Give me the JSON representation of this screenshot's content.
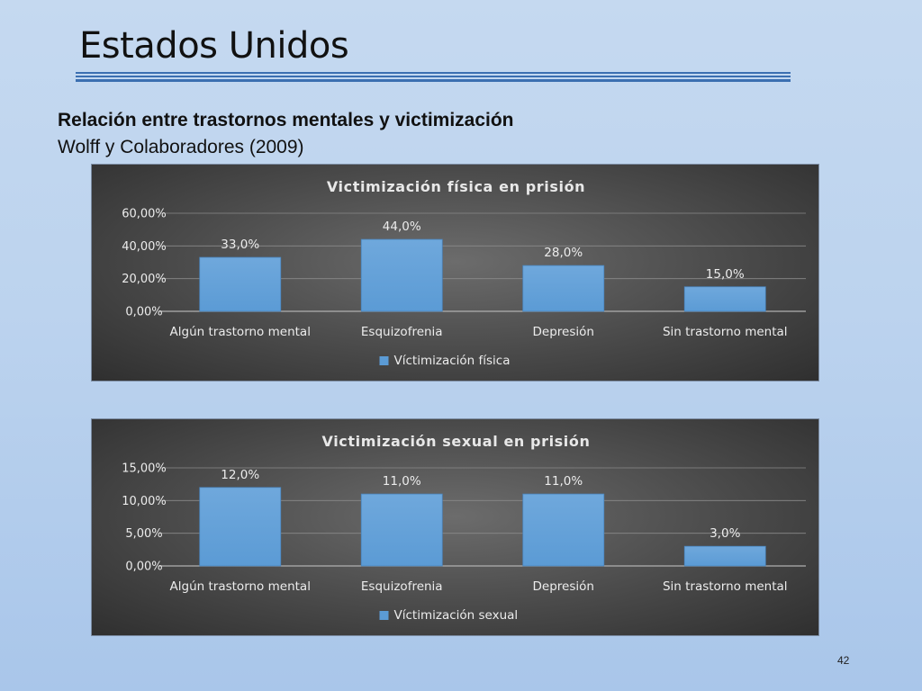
{
  "slide": {
    "title": "Estados Unidos",
    "subtitle_bold": "Relación entre trastornos mentales y victimización",
    "subtitle_normal": "Wolff y Colaboradores (2009)",
    "page_number": "42"
  },
  "colors": {
    "bar": "#5b9bd5",
    "bar_top": "#6fa8dc",
    "gridline": "#8a8a8a",
    "text": "#ececec"
  },
  "chart_data": [
    {
      "type": "bar",
      "title": "Victimización física en prisión",
      "categories": [
        "Algún trastorno mental",
        "Esquizofrenia",
        "Depresión",
        "Sin trastorno mental"
      ],
      "series": [
        {
          "name": "Víctimización física",
          "values": [
            33.0,
            44.0,
            28.0,
            15.0
          ]
        }
      ],
      "data_labels": [
        "33,0%",
        "44,0%",
        "28,0%",
        "15,0%"
      ],
      "y_ticks": [
        0,
        20,
        40,
        60
      ],
      "y_tick_labels": [
        "0,00%",
        "20,00%",
        "40,00%",
        "60,00%"
      ],
      "ylim": [
        0,
        60
      ],
      "grid": true,
      "legend": "bottom"
    },
    {
      "type": "bar",
      "title": "Victimización sexual en prisión",
      "categories": [
        "Algún trastorno mental",
        "Esquizofrenia",
        "Depresión",
        "Sin trastorno mental"
      ],
      "series": [
        {
          "name": "Víctimización sexual",
          "values": [
            12.0,
            11.0,
            11.0,
            3.0
          ]
        }
      ],
      "data_labels": [
        "12,0%",
        "11,0%",
        "11,0%",
        "3,0%"
      ],
      "y_ticks": [
        0,
        5,
        10,
        15
      ],
      "y_tick_labels": [
        "0,00%",
        "5,00%",
        "10,00%",
        "15,00%"
      ],
      "ylim": [
        0,
        15
      ],
      "grid": true,
      "legend": "bottom"
    }
  ]
}
